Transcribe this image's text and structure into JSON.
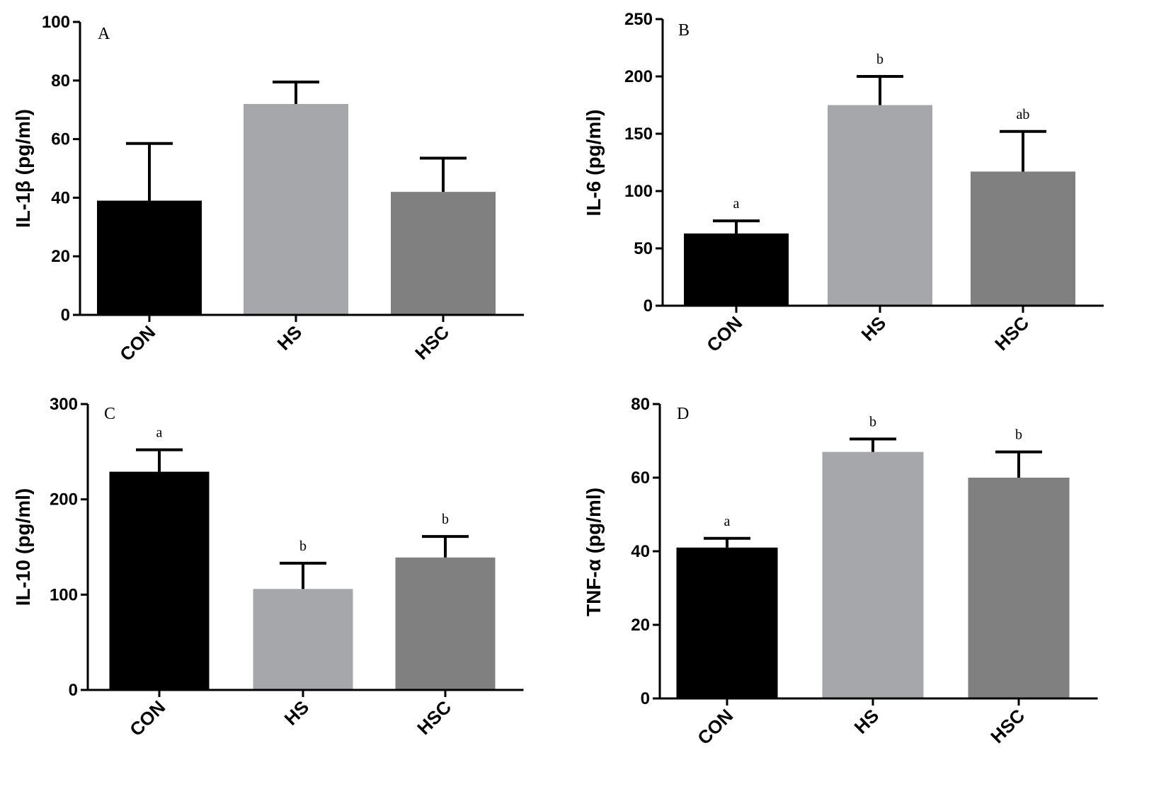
{
  "colors": {
    "CON": "#000000",
    "HS": "#a6a7aa",
    "HSC": "#808080",
    "axis": "#000000"
  },
  "chart_data": [
    {
      "type": "bar",
      "panel": "A",
      "ylabel": "IL-1β  (pg/ml)",
      "categories": [
        "CON",
        "HS",
        "HSC"
      ],
      "values": [
        39,
        72,
        42
      ],
      "errors": [
        19.5,
        7.5,
        11.5
      ],
      "significance": [
        "",
        "",
        ""
      ],
      "ylim": [
        0,
        100
      ],
      "yticks": [
        0,
        20,
        40,
        60,
        80,
        100
      ]
    },
    {
      "type": "bar",
      "panel": "B",
      "ylabel": "IL-6 (pg/ml)",
      "categories": [
        "CON",
        "HS",
        "HSC"
      ],
      "values": [
        63,
        175,
        117
      ],
      "errors": [
        11,
        25,
        35
      ],
      "significance": [
        "a",
        "b",
        "ab"
      ],
      "ylim": [
        0,
        250
      ],
      "yticks": [
        0,
        50,
        100,
        150,
        200,
        250
      ]
    },
    {
      "type": "bar",
      "panel": "C",
      "ylabel": "IL-10 (pg/ml)",
      "categories": [
        "CON",
        "HS",
        "HSC"
      ],
      "values": [
        229,
        106,
        139
      ],
      "errors": [
        23,
        27,
        22
      ],
      "significance": [
        "a",
        "b",
        "b"
      ],
      "ylim": [
        0,
        300
      ],
      "yticks": [
        0,
        100,
        200,
        300
      ]
    },
    {
      "type": "bar",
      "panel": "D",
      "ylabel": "TNF-α (pg/ml)",
      "categories": [
        "CON",
        "HS",
        "HSC"
      ],
      "values": [
        41,
        67,
        60
      ],
      "errors": [
        2.5,
        3.5,
        7
      ],
      "significance": [
        "a",
        "b",
        "b"
      ],
      "ylim": [
        0,
        80
      ],
      "yticks": [
        0,
        20,
        40,
        60,
        80
      ]
    }
  ]
}
